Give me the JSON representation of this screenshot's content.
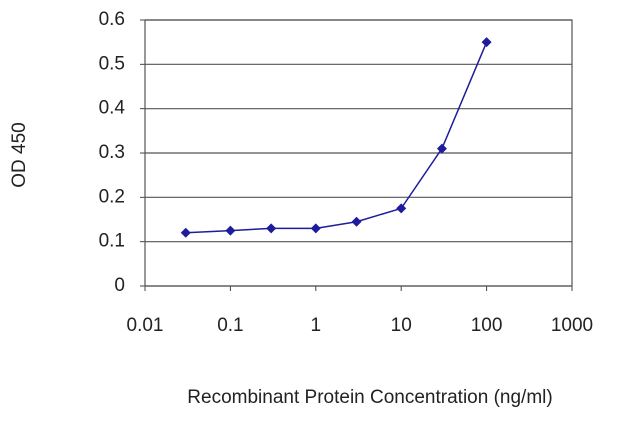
{
  "chart_data": {
    "type": "line",
    "xlabel": "Recombinant Protein Concentration (ng/ml)",
    "ylabel": "OD 450",
    "xscale": "log",
    "x": [
      0.03,
      0.1,
      0.3,
      1,
      3,
      10,
      30,
      100
    ],
    "series": [
      {
        "color": "#1c1c9c",
        "values": [
          0.12,
          0.125,
          0.13,
          0.13,
          0.145,
          0.175,
          0.31,
          0.55
        ]
      }
    ],
    "xlim": [
      0.01,
      1000
    ],
    "xticks": [
      0.01,
      0.1,
      1,
      10,
      100,
      1000
    ],
    "ylim": [
      0,
      0.6
    ],
    "yticks": [
      0,
      0.1,
      0.2,
      0.3,
      0.4,
      0.5,
      0.6
    ],
    "grid": true
  }
}
